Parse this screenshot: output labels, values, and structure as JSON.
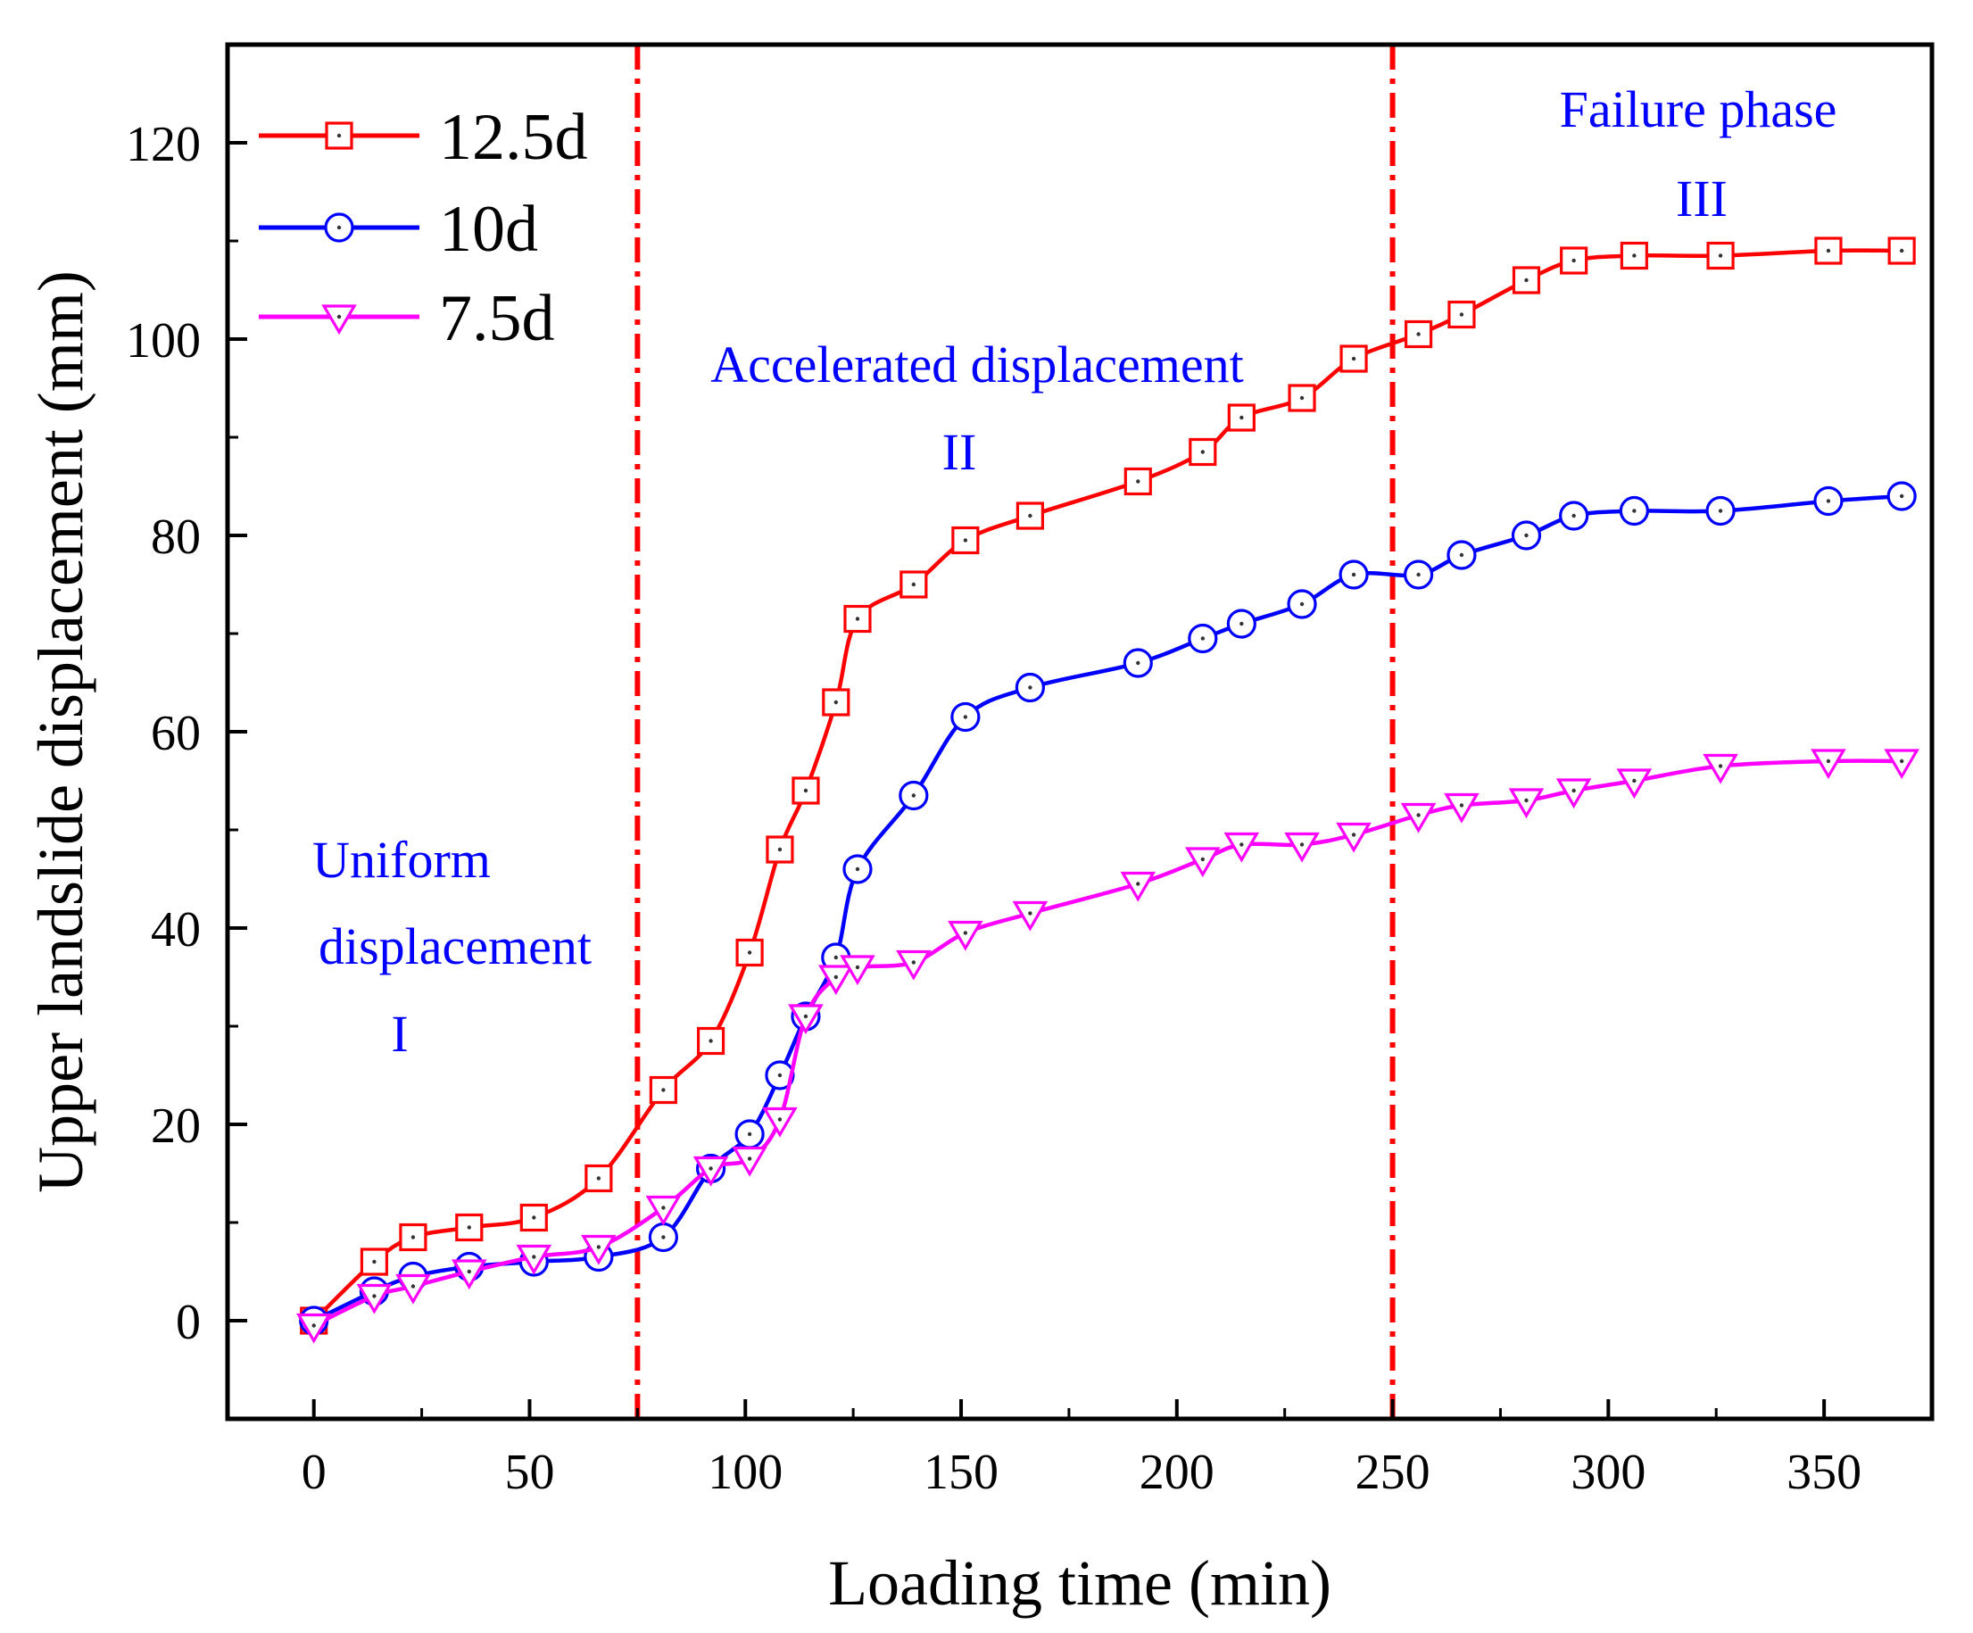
{
  "chart_data": {
    "type": "line",
    "title": "",
    "xlabel": "Loading time (min)",
    "ylabel": "Upper landslide displacement (mm)",
    "xlim": [
      -20,
      375
    ],
    "ylim": [
      -10,
      130
    ],
    "xticks": [
      0,
      50,
      100,
      150,
      200,
      250,
      300,
      350
    ],
    "yticks": [
      0,
      20,
      40,
      60,
      80,
      100,
      120
    ],
    "xtick_labels": [
      "0",
      "50",
      "100",
      "150",
      "200",
      "250",
      "300",
      "350"
    ],
    "ytick_labels": [
      "0",
      "20",
      "40",
      "60",
      "80",
      "100",
      "120"
    ],
    "legend_position": "top-left",
    "series": [
      {
        "name": "12.5d",
        "color": "#ff0000",
        "marker": "square",
        "x": [
          0,
          14,
          23,
          36,
          51,
          66,
          81,
          92,
          101,
          108,
          114,
          121,
          126,
          139,
          151,
          166,
          191,
          206,
          215,
          229,
          241,
          256,
          266,
          281,
          292,
          306,
          326,
          351,
          368
        ],
        "y": [
          0,
          6,
          8.5,
          9.5,
          10.5,
          14.5,
          23.5,
          28.5,
          37.5,
          48,
          54,
          63,
          71.5,
          75,
          79.5,
          82,
          85.5,
          88.5,
          92,
          94,
          98,
          100.5,
          102.5,
          106,
          108,
          108.5,
          108.5,
          109,
          109
        ]
      },
      {
        "name": "10d",
        "color": "#0000ff",
        "marker": "circle",
        "x": [
          0,
          14,
          23,
          36,
          51,
          66,
          81,
          92,
          101,
          108,
          114,
          121,
          126,
          139,
          151,
          166,
          191,
          206,
          215,
          229,
          241,
          256,
          266,
          281,
          292,
          306,
          326,
          351,
          368
        ],
        "y": [
          0,
          3,
          4.5,
          5.5,
          6,
          6.5,
          8.5,
          15.5,
          19,
          25,
          31,
          37,
          46,
          53.5,
          61.5,
          64.5,
          67,
          69.5,
          71,
          73,
          76,
          76,
          78,
          80,
          82,
          82.5,
          82.5,
          83.5,
          84
        ]
      },
      {
        "name": "7.5d",
        "color": "#ff00ff",
        "marker": "triangle-down",
        "x": [
          0,
          14,
          23,
          36,
          51,
          66,
          81,
          92,
          101,
          108,
          114,
          121,
          126,
          139,
          151,
          166,
          191,
          206,
          215,
          229,
          241,
          256,
          266,
          281,
          292,
          306,
          326,
          351,
          368
        ],
        "y": [
          -0.5,
          2.5,
          3.5,
          5,
          6.5,
          7.5,
          11.5,
          15.5,
          16.5,
          20.5,
          31,
          35,
          36,
          36.5,
          39.5,
          41.5,
          44.5,
          47,
          48.5,
          48.5,
          49.5,
          51.5,
          52.5,
          53,
          54,
          55,
          56.5,
          57,
          57
        ]
      }
    ],
    "phase_boundaries": [
      75,
      250
    ],
    "boundary_color": "#ff0000",
    "annotation_color": "#0000ff",
    "annotations": [
      {
        "lines": [
          "Uniform",
          "displacement",
          "I"
        ]
      },
      {
        "lines": [
          "Accelerated displacement",
          "II"
        ]
      },
      {
        "lines": [
          "Failure phase",
          "III"
        ]
      }
    ]
  }
}
